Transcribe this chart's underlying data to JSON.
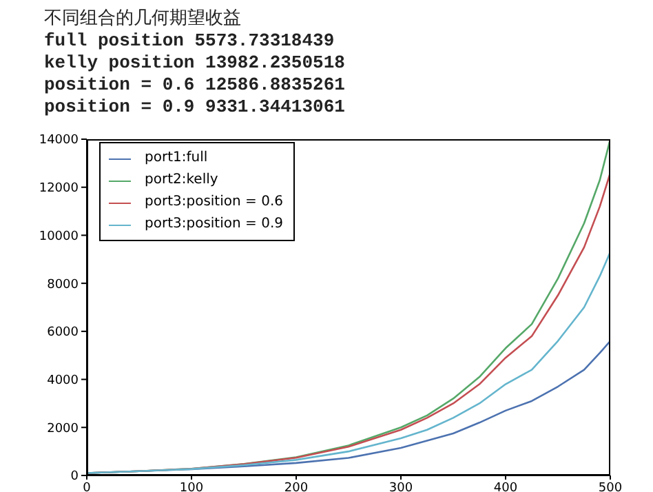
{
  "chart_data": {
    "type": "line",
    "title": "不同组合的几何期望收益",
    "annotations": [
      "full position 5573.73318439",
      "kelly position 13982.2350518",
      "position = 0.6 12586.8835261",
      "position = 0.9 9331.34413061"
    ],
    "x": [
      0,
      50,
      100,
      150,
      200,
      250,
      300,
      325,
      350,
      375,
      400,
      425,
      450,
      475,
      490,
      500
    ],
    "series": [
      {
        "name": "port1:full",
        "color": "#4c72b0",
        "values": [
          100,
          180,
          260,
          380,
          520,
          730,
          1150,
          1450,
          1750,
          2200,
          2700,
          3100,
          3700,
          4400,
          5100,
          5600
        ]
      },
      {
        "name": "port2:kelly",
        "color": "#55a868",
        "values": [
          100,
          180,
          280,
          480,
          760,
          1250,
          2000,
          2500,
          3200,
          4100,
          5300,
          6300,
          8200,
          10500,
          12300,
          14000
        ]
      },
      {
        "name": "port3:position = 0.6",
        "color": "#c44e52",
        "values": [
          100,
          180,
          280,
          470,
          740,
          1200,
          1900,
          2400,
          3000,
          3800,
          4900,
          5800,
          7500,
          9500,
          11200,
          12600
        ]
      },
      {
        "name": "port3:position = 0.9",
        "color": "#64b5cd",
        "values": [
          100,
          180,
          270,
          430,
          650,
          1000,
          1550,
          1900,
          2400,
          3000,
          3800,
          4400,
          5600,
          7000,
          8300,
          9300
        ]
      }
    ],
    "xlim": [
      0,
      500
    ],
    "xticks": [
      0,
      100,
      200,
      300,
      400,
      500
    ],
    "ylim": [
      0,
      14000
    ],
    "yticks": [
      0,
      2000,
      4000,
      6000,
      8000,
      10000,
      12000,
      14000
    ],
    "grid": false,
    "legend": "top left",
    "marker": "none",
    "line_style": "solid"
  }
}
